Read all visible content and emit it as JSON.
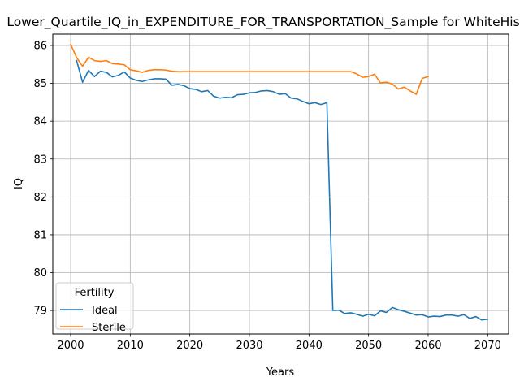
{
  "chart_data": {
    "type": "line",
    "title": "Lower_Quartile_IQ_in_EXPENDITURE_FOR_TRANSPORTATION_Sample for WhiteHispanic",
    "xlabel": "Years",
    "ylabel": "IQ",
    "xlim": [
      1997,
      2073.5
    ],
    "ylim": [
      78.38,
      86.3
    ],
    "xticks": [
      2000,
      2010,
      2020,
      2030,
      2040,
      2050,
      2060,
      2070
    ],
    "yticks": [
      79,
      80,
      81,
      82,
      83,
      84,
      85,
      86
    ],
    "grid": true,
    "legend": {
      "title": "Fertility",
      "location": "lower-left"
    },
    "series": [
      {
        "name": "Ideal",
        "color": "#1f77b4",
        "x": [
          2001,
          2002,
          2003,
          2004,
          2005,
          2006,
          2007,
          2008,
          2009,
          2010,
          2011,
          2012,
          2013,
          2014,
          2015,
          2016,
          2017,
          2018,
          2019,
          2020,
          2021,
          2022,
          2023,
          2024,
          2025,
          2026,
          2027,
          2028,
          2029,
          2030,
          2031,
          2032,
          2033,
          2034,
          2035,
          2036,
          2037,
          2038,
          2039,
          2040,
          2041,
          2042,
          2043,
          2044,
          2045,
          2046,
          2047,
          2048,
          2049,
          2050,
          2051,
          2052,
          2053,
          2054,
          2055,
          2056,
          2057,
          2058,
          2059,
          2060,
          2061,
          2062,
          2063,
          2064,
          2065,
          2066,
          2067,
          2068,
          2069,
          2070
        ],
        "y": [
          85.6,
          85.03,
          85.34,
          85.18,
          85.32,
          85.29,
          85.17,
          85.21,
          85.3,
          85.14,
          85.08,
          85.05,
          85.09,
          85.12,
          85.12,
          85.11,
          84.95,
          84.97,
          84.94,
          84.86,
          84.84,
          84.78,
          84.81,
          84.66,
          84.61,
          84.63,
          84.62,
          84.7,
          84.71,
          84.75,
          84.76,
          84.8,
          84.81,
          84.78,
          84.71,
          84.73,
          84.61,
          84.59,
          84.52,
          84.46,
          84.49,
          84.44,
          84.49,
          79.0,
          79.01,
          78.92,
          78.94,
          78.9,
          78.85,
          78.9,
          78.86,
          78.99,
          78.95,
          79.08,
          79.02,
          78.98,
          78.93,
          78.88,
          78.89,
          78.83,
          78.85,
          78.84,
          78.88,
          78.88,
          78.85,
          78.89,
          78.79,
          78.84,
          78.75,
          78.77
        ]
      },
      {
        "name": "Sterile",
        "color": "#ff7f0e",
        "x": [
          2000,
          2001,
          2002,
          2003,
          2004,
          2005,
          2006,
          2007,
          2008,
          2009,
          2010,
          2011,
          2012,
          2013,
          2014,
          2015,
          2016,
          2017,
          2018,
          2019,
          2020,
          2021,
          2022,
          2023,
          2024,
          2025,
          2026,
          2027,
          2028,
          2029,
          2030,
          2031,
          2032,
          2033,
          2034,
          2035,
          2036,
          2037,
          2038,
          2039,
          2040,
          2041,
          2042,
          2043,
          2044,
          2045,
          2046,
          2047,
          2048,
          2049,
          2050,
          2051,
          2052,
          2053,
          2054,
          2055,
          2056,
          2057,
          2058,
          2059,
          2060
        ],
        "y": [
          86.03,
          85.68,
          85.45,
          85.69,
          85.6,
          85.58,
          85.6,
          85.52,
          85.51,
          85.49,
          85.36,
          85.33,
          85.29,
          85.34,
          85.36,
          85.36,
          85.35,
          85.32,
          85.31,
          85.31,
          85.31,
          85.31,
          85.31,
          85.31,
          85.31,
          85.31,
          85.31,
          85.31,
          85.31,
          85.31,
          85.31,
          85.31,
          85.31,
          85.31,
          85.31,
          85.31,
          85.31,
          85.31,
          85.31,
          85.31,
          85.31,
          85.31,
          85.31,
          85.31,
          85.31,
          85.31,
          85.31,
          85.31,
          85.25,
          85.16,
          85.18,
          85.24,
          85.01,
          85.03,
          84.98,
          84.85,
          84.9,
          84.8,
          84.71,
          85.13,
          85.18
        ]
      }
    ]
  }
}
